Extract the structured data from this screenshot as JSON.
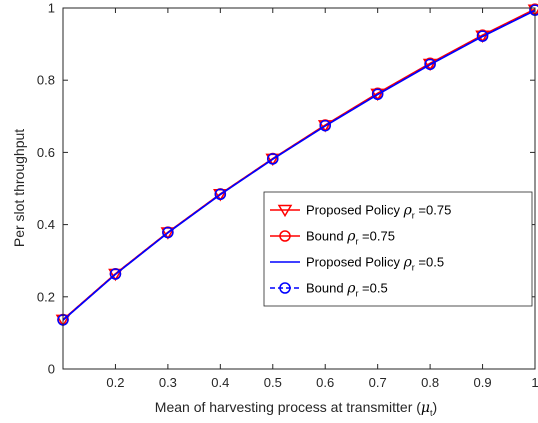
{
  "chart_data": {
    "type": "line",
    "xlabel": "Mean of harvesting process at transmitter (",
    "xlabel_symbol": "μ",
    "xlabel_subscript": "t",
    "xlabel_suffix": ")",
    "ylabel": "Per slot throughput",
    "xlim": [
      0.1,
      1.0
    ],
    "ylim": [
      0,
      1
    ],
    "x_tick_labels": [
      "0.2",
      "0.3",
      "0.4",
      "0.5",
      "0.6",
      "0.7",
      "0.8",
      "0.9",
      "1"
    ],
    "y_tick_labels": [
      "0",
      "0.2",
      "0.4",
      "0.6",
      "0.8",
      "1"
    ],
    "x": [
      0.1,
      0.2,
      0.3,
      0.4,
      0.5,
      0.6,
      0.7,
      0.8,
      0.9,
      1.0
    ],
    "grid": false,
    "legend_position": "center-right",
    "series": [
      {
        "name": "Proposed Policy",
        "param_symbol": "ρ",
        "param_subscript": "r",
        "param_value": "=0.75",
        "color": "#ff0000",
        "line": "solid",
        "marker": "triangle-down",
        "values": [
          0.136,
          0.263,
          0.378,
          0.484,
          0.582,
          0.675,
          0.762,
          0.845,
          0.923,
          0.995
        ]
      },
      {
        "name": "Bound",
        "param_symbol": "ρ",
        "param_subscript": "r",
        "param_value": "=0.75",
        "color": "#ff0000",
        "line": "solid",
        "marker": "circle",
        "values": [
          0.137,
          0.264,
          0.379,
          0.485,
          0.583,
          0.676,
          0.764,
          0.847,
          0.925,
          0.997
        ]
      },
      {
        "name": "Proposed Policy",
        "param_symbol": "ρ",
        "param_subscript": "r",
        "param_value": "=0.5",
        "color": "#0000ff",
        "line": "solid",
        "marker": "none",
        "values": [
          0.135,
          0.262,
          0.377,
          0.483,
          0.581,
          0.673,
          0.76,
          0.843,
          0.921,
          0.993
        ]
      },
      {
        "name": "Bound",
        "param_symbol": "ρ",
        "param_subscript": "r",
        "param_value": "=0.5",
        "color": "#0000ff",
        "line": "dashed",
        "marker": "circle",
        "values": [
          0.136,
          0.263,
          0.378,
          0.484,
          0.582,
          0.674,
          0.761,
          0.844,
          0.922,
          0.994
        ]
      }
    ]
  }
}
